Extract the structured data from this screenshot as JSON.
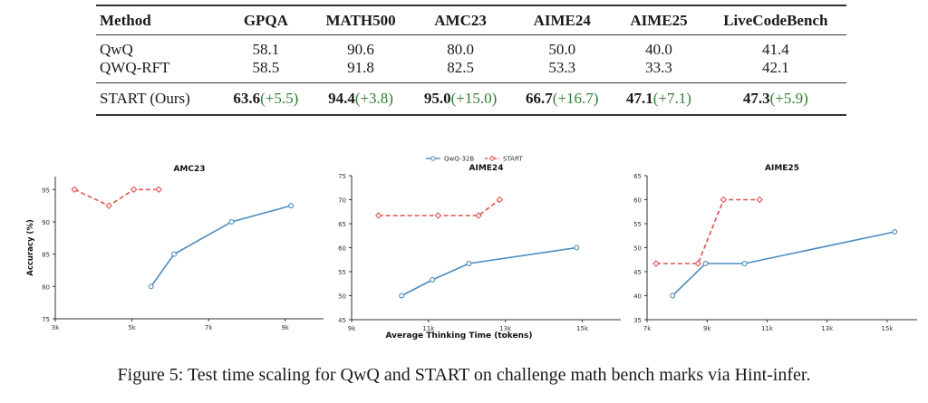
{
  "table": {
    "headers": [
      "Method",
      "GPQA",
      "MATH500",
      "AMC23",
      "AIME24",
      "AIME25",
      "LiveCodeBench"
    ],
    "rows": [
      {
        "method": "QwQ",
        "values": [
          "58.1",
          "90.6",
          "80.0",
          "50.0",
          "40.0",
          "41.4"
        ]
      },
      {
        "method": "QWQ-RFT",
        "values": [
          "58.5",
          "91.8",
          "82.5",
          "53.3",
          "33.3",
          "42.1"
        ]
      }
    ],
    "ours": {
      "method": "START (Ours)",
      "values": [
        "63.6",
        "94.4",
        "95.0",
        "66.7",
        "47.1",
        "47.3"
      ],
      "deltas": [
        "(+5.5)",
        "(+3.8)",
        "(+15.0)",
        "(+16.7)",
        "(+7.1)",
        "(+5.9)"
      ]
    }
  },
  "caption": "Figure 5: Test time scaling for QwQ and START on challenge math bench marks via Hint-infer.",
  "colors": {
    "qwq": "#4c8cbf",
    "start": "#d9534f",
    "delta": "#2e7d32"
  },
  "chart_data": [
    {
      "type": "line",
      "title": "AMC23",
      "xlabel": "",
      "ylabel": "Accuracy (%)",
      "xlim": [
        3000,
        10000
      ],
      "ylim": [
        75,
        97
      ],
      "xticks": [
        3000,
        5000,
        7000,
        9000
      ],
      "xtick_labels": [
        "3k",
        "5k",
        "7k",
        "9k"
      ],
      "yticks": [
        75,
        80,
        85,
        90,
        95
      ],
      "ytick_labels": [
        "75",
        "80",
        "85",
        "90",
        "95"
      ],
      "grid": false,
      "series": [
        {
          "name": "QwQ-32B",
          "style": "solid",
          "x": [
            5500,
            6100,
            7600,
            9150
          ],
          "y": [
            80,
            85,
            90,
            92.5
          ]
        },
        {
          "name": "START",
          "style": "dashed",
          "x": [
            3500,
            4400,
            5050,
            5700
          ],
          "y": [
            95,
            92.5,
            95,
            95
          ]
        }
      ]
    },
    {
      "type": "line",
      "title": "AIME24",
      "xlabel": "Average Thinking Time (tokens)",
      "ylabel": "",
      "xlim": [
        9000,
        16000
      ],
      "ylim": [
        45,
        75
      ],
      "xticks": [
        9000,
        11000,
        13000,
        15000
      ],
      "xtick_labels": [
        "9k",
        "11k",
        "13k",
        "15k"
      ],
      "yticks": [
        45,
        50,
        55,
        60,
        65,
        70,
        75
      ],
      "ytick_labels": [
        "45",
        "50",
        "55",
        "60",
        "65",
        "70",
        "75"
      ],
      "grid": false,
      "legend": {
        "position": "top-center",
        "entries": [
          "QwQ-32B",
          "START"
        ]
      },
      "series": [
        {
          "name": "QwQ-32B",
          "style": "solid",
          "x": [
            10300,
            11100,
            12050,
            14850
          ],
          "y": [
            50,
            53.3,
            56.7,
            60
          ]
        },
        {
          "name": "START",
          "style": "dashed",
          "x": [
            9700,
            11250,
            12300,
            12850
          ],
          "y": [
            66.7,
            66.7,
            66.7,
            70
          ]
        }
      ]
    },
    {
      "type": "line",
      "title": "AIME25",
      "xlabel": "",
      "ylabel": "",
      "xlim": [
        7000,
        16000
      ],
      "ylim": [
        35,
        65
      ],
      "xticks": [
        7000,
        9000,
        11000,
        13000,
        15000
      ],
      "xtick_labels": [
        "7k",
        "9k",
        "11k",
        "13k",
        "15k"
      ],
      "yticks": [
        35,
        40,
        45,
        50,
        55,
        60,
        65
      ],
      "ytick_labels": [
        "35",
        "40",
        "45",
        "50",
        "55",
        "60",
        "65"
      ],
      "grid": false,
      "series": [
        {
          "name": "QwQ-32B",
          "style": "solid",
          "x": [
            7850,
            8950,
            10250,
            15250
          ],
          "y": [
            40,
            46.7,
            46.7,
            53.3
          ]
        },
        {
          "name": "START",
          "style": "dashed",
          "x": [
            7300,
            8700,
            9550,
            10750
          ],
          "y": [
            46.7,
            46.7,
            60,
            60
          ]
        }
      ]
    }
  ]
}
